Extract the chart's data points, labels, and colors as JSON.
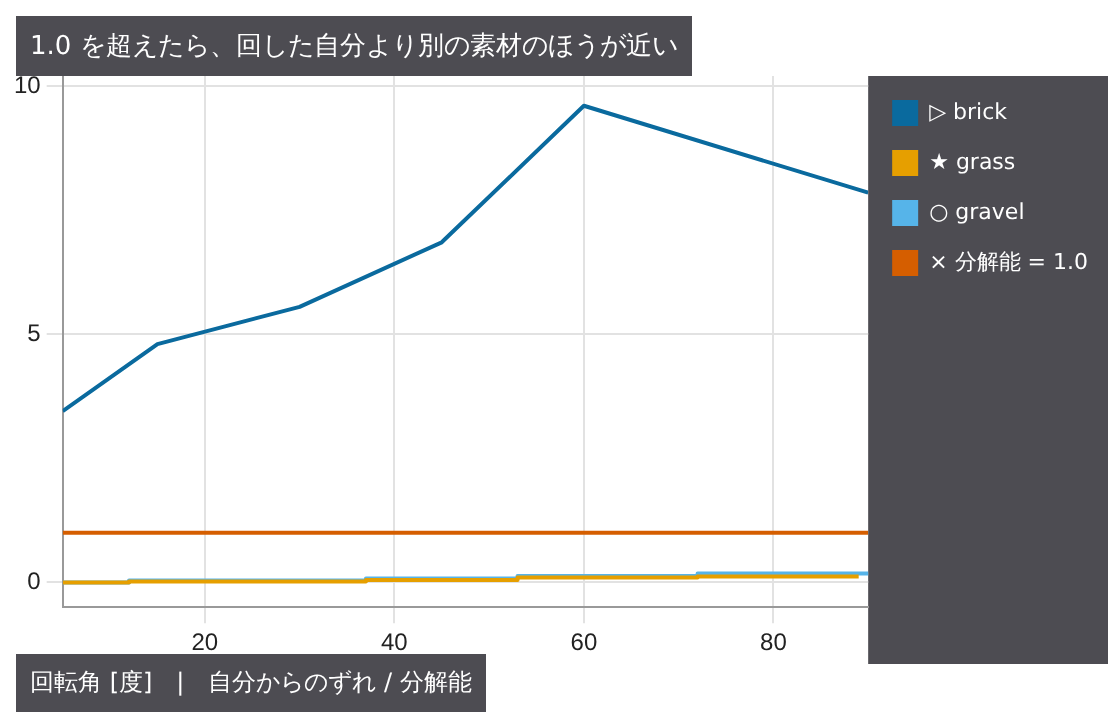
{
  "chart_data": {
    "type": "line",
    "title": "1.0 を超えたら、回した自分より別の素材のほうが近い",
    "xlabel": "回転角 [度]　|　自分からのずれ / 分解能",
    "x": [
      5,
      15,
      30,
      45,
      60,
      90
    ],
    "series": [
      {
        "name": "▷ brick",
        "color": "#0a6a9e",
        "values": [
          3.45,
          4.8,
          5.55,
          6.85,
          9.6,
          7.85
        ]
      },
      {
        "name": "★ grass",
        "color": "#e69f00",
        "type": "step",
        "x": [
          5,
          12,
          37,
          53,
          72,
          89
        ],
        "values": [
          0,
          0.02,
          0.05,
          0.1,
          0.12,
          0.12
        ]
      },
      {
        "name": "○ gravel",
        "color": "#56b4e9",
        "type": "step",
        "x": [
          5,
          12,
          37,
          53,
          72,
          90
        ],
        "values": [
          0,
          0.04,
          0.08,
          0.13,
          0.18,
          0.2
        ]
      },
      {
        "name": "× 分解能 = 1.0",
        "color": "#d55e00",
        "x": [
          5,
          90
        ],
        "values": [
          1,
          1
        ]
      }
    ],
    "xlim": [
      5,
      90
    ],
    "xticks": [
      20,
      40,
      60,
      80
    ],
    "ylim": [
      -0.5,
      10.2
    ],
    "yticks": [
      0,
      5,
      10
    ],
    "grid": true,
    "legend": "top right",
    "marker": "none",
    "line_style": "solid"
  }
}
